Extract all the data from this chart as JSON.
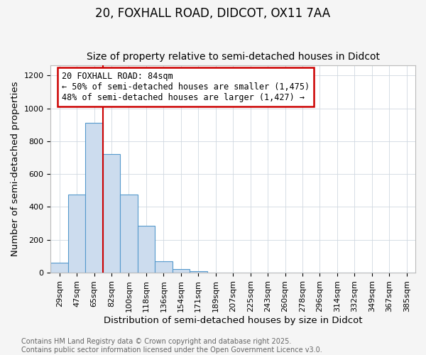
{
  "title1": "20, FOXHALL ROAD, DIDCOT, OX11 7AA",
  "title2": "Size of property relative to semi-detached houses in Didcot",
  "xlabel": "Distribution of semi-detached houses by size in Didcot",
  "ylabel": "Number of semi-detached properties",
  "bin_labels": [
    "29sqm",
    "47sqm",
    "65sqm",
    "82sqm",
    "100sqm",
    "118sqm",
    "136sqm",
    "154sqm",
    "171sqm",
    "189sqm",
    "207sqm",
    "225sqm",
    "243sqm",
    "260sqm",
    "278sqm",
    "296sqm",
    "314sqm",
    "332sqm",
    "349sqm",
    "367sqm",
    "385sqm"
  ],
  "bar_heights": [
    60,
    475,
    910,
    720,
    475,
    285,
    70,
    20,
    10,
    0,
    0,
    0,
    0,
    0,
    0,
    0,
    0,
    0,
    0,
    0,
    0
  ],
  "bar_color": "#ccdcee",
  "bar_edge_color": "#5599cc",
  "property_size_idx": 3,
  "vline_color": "#cc0000",
  "annotation_line1": "20 FOXHALL ROAD: 84sqm",
  "annotation_line2": "← 50% of semi-detached houses are smaller (1,475)",
  "annotation_line3": "48% of semi-detached houses are larger (1,427) →",
  "annotation_box_color": "#cc0000",
  "ylim": [
    0,
    1260
  ],
  "yticks": [
    0,
    200,
    400,
    600,
    800,
    1000,
    1200
  ],
  "footer1": "Contains HM Land Registry data © Crown copyright and database right 2025.",
  "footer2": "Contains public sector information licensed under the Open Government Licence v3.0.",
  "title1_fontsize": 12,
  "title2_fontsize": 10,
  "axis_label_fontsize": 9.5,
  "tick_fontsize": 8,
  "annotation_fontsize": 8.5,
  "footer_fontsize": 7,
  "background_color": "#f5f5f5",
  "plot_background_color": "#ffffff",
  "grid_color": "#d0d8e0"
}
